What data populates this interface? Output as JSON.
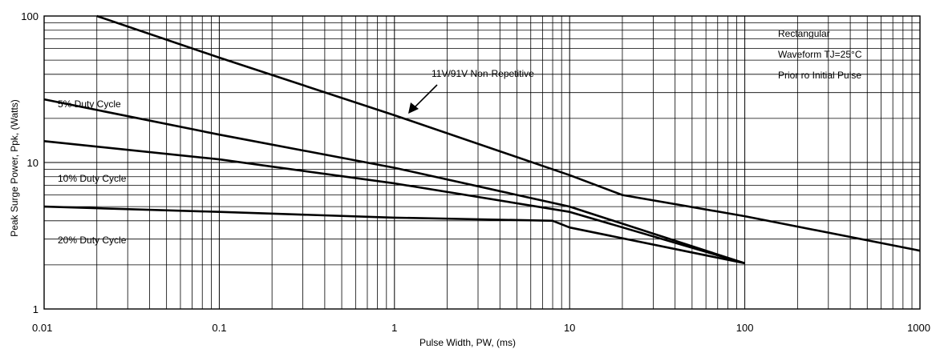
{
  "chart_data": {
    "type": "line",
    "x_scale": "log",
    "y_scale": "log",
    "xlim": [
      0.01,
      1000
    ],
    "ylim": [
      1,
      100
    ],
    "grid": true,
    "xlabel": "Pulse Width, PW, (ms)",
    "ylabel": "Peak Surge Power, Ppk, (Watts)",
    "x_ticks": [
      "0.01",
      "0.1",
      "1",
      "10",
      "100",
      "1000"
    ],
    "y_ticks": [
      "1",
      "10",
      "100"
    ],
    "series": [
      {
        "name": "11V/91V Non-Repetitive",
        "x": [
          0.02,
          0.1,
          1,
          10,
          20,
          100,
          1000
        ],
        "y": [
          100,
          52,
          21,
          8.2,
          6.0,
          4.3,
          2.5
        ]
      },
      {
        "name": "5% Duty Cycle",
        "x": [
          0.01,
          0.1,
          1,
          10,
          100
        ],
        "y": [
          27,
          15.5,
          9.2,
          5.0,
          2.05
        ]
      },
      {
        "name": "10% Duty Cycle",
        "x": [
          0.01,
          0.1,
          1,
          10,
          100
        ],
        "y": [
          14,
          10.5,
          7.2,
          4.6,
          2.05
        ]
      },
      {
        "name": "20% Duty Cycle",
        "x": [
          0.01,
          0.1,
          1,
          8,
          10,
          100
        ],
        "y": [
          5.0,
          4.6,
          4.2,
          4.0,
          3.6,
          2.05
        ]
      }
    ],
    "annotations": {
      "arrow_label": "11V/91V Non-Repetitive",
      "duty5": "5% Duty Cycle",
      "duty10": "10% Duty Cycle",
      "duty20": "20% Duty Cycle",
      "note_line1": "Rectangular",
      "note_line2": "Waveform TJ=25°C",
      "note_line3": "Prior ro Initial Pulse"
    }
  }
}
